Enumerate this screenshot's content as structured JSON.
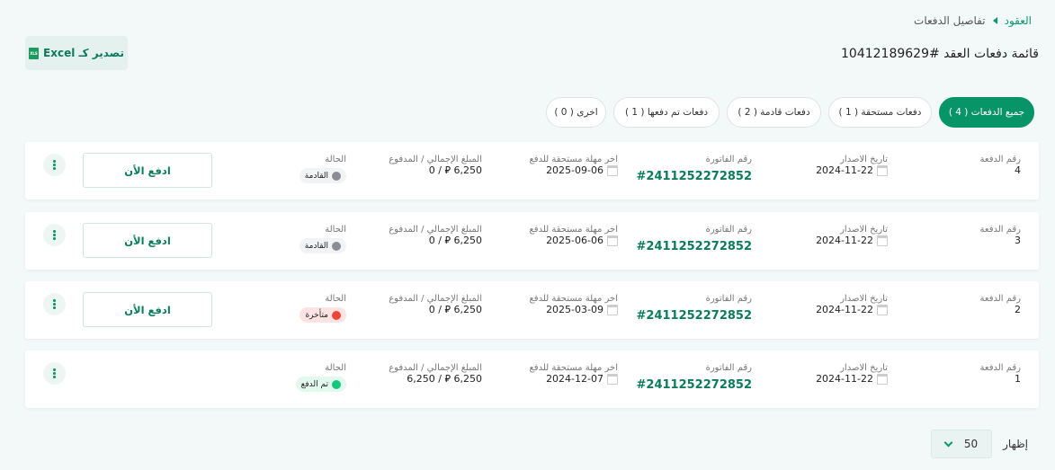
{
  "breadcrumb": {
    "home": "العقود",
    "current": "تفاصيل الدفعات"
  },
  "page_title": "قائمة دفعات العقد #10412189629",
  "export_label": "تصدير كـ Excel",
  "tabs": [
    {
      "label": "جميع الدفعات ( 4 )",
      "active": true
    },
    {
      "label": "دفعات مستحقة ( 1 )"
    },
    {
      "label": "دفعات قادمة ( 2 )"
    },
    {
      "label": "دفعات تم دفعها ( 1 )"
    },
    {
      "label": "اخرى ( 0 )"
    }
  ],
  "columns": {
    "number": "رقم الدفعة",
    "issue_date": "تاريخ الاصدار",
    "invoice": "رقم الفاتورة",
    "deadline": "اخر مهلة مستحقة للدفع",
    "amount": "المبلغ الإجمالي / المدفوع",
    "status": "الحالة"
  },
  "currency_symbol": "⃁",
  "pay_label": "ادفع الأن",
  "rows": [
    {
      "number": "4",
      "issue_date": "2024-11-22",
      "invoice": "#2411252272852",
      "deadline": "2025-09-06",
      "total": "6,250",
      "paid": "0",
      "status": "القادمة",
      "status_color": "#8a8d93",
      "status_bg": "#f2f3f4",
      "pay": true
    },
    {
      "number": "3",
      "issue_date": "2024-11-22",
      "invoice": "#2411252272852",
      "deadline": "2025-06-06",
      "total": "6,250",
      "paid": "0",
      "status": "القادمة",
      "status_color": "#8a8d93",
      "status_bg": "#f2f3f4",
      "pay": true
    },
    {
      "number": "2",
      "issue_date": "2024-11-22",
      "invoice": "#2411252272852",
      "deadline": "2025-03-09",
      "total": "6,250",
      "paid": "0",
      "status": "متأخرة",
      "status_color": "#f0443a",
      "status_bg": "#fde4e2",
      "pay": true
    },
    {
      "number": "1",
      "issue_date": "2024-11-22",
      "invoice": "#2411252272852",
      "deadline": "2024-12-07",
      "total": "6,250",
      "paid": "6,250",
      "status": "تم الدفع",
      "status_color": "#12c77e",
      "status_bg": "#e3f8ef",
      "pay": false
    }
  ],
  "pagination": {
    "show_label": "إظهار",
    "page_size": "50"
  }
}
